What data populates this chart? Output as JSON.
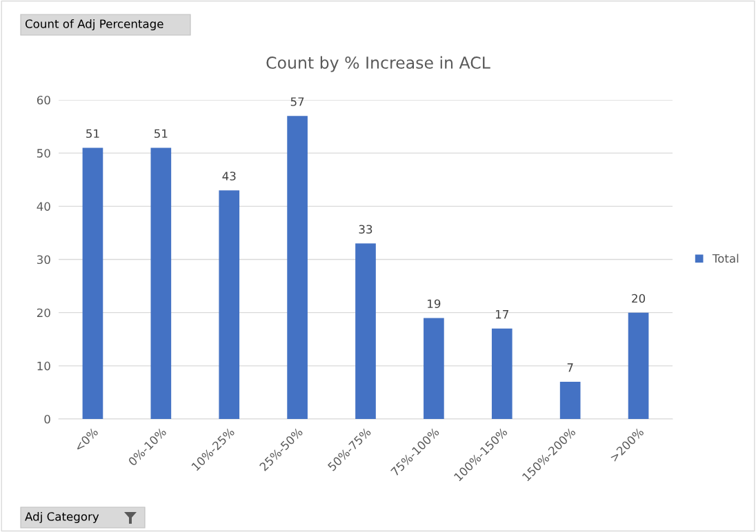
{
  "chart_data": {
    "type": "bar",
    "title": "Count by % Increase in ACL",
    "categories": [
      "<0%",
      "0%-10%",
      "10%-25%",
      "25%-50%",
      "50%-75%",
      "75%-100%",
      "100%-150%",
      "150%-200%",
      ">200%"
    ],
    "series": [
      {
        "name": "Total",
        "color": "#4472c4",
        "values": [
          51,
          51,
          43,
          57,
          33,
          19,
          17,
          7,
          20
        ]
      }
    ],
    "ylim": [
      0,
      60
    ],
    "yticks": [
      0,
      10,
      20,
      30,
      40,
      50,
      60
    ],
    "grid": "y",
    "legend": "right",
    "data_labels": true,
    "annotations": [
      "Count of Adj Percentage",
      "Adj Category"
    ]
  }
}
